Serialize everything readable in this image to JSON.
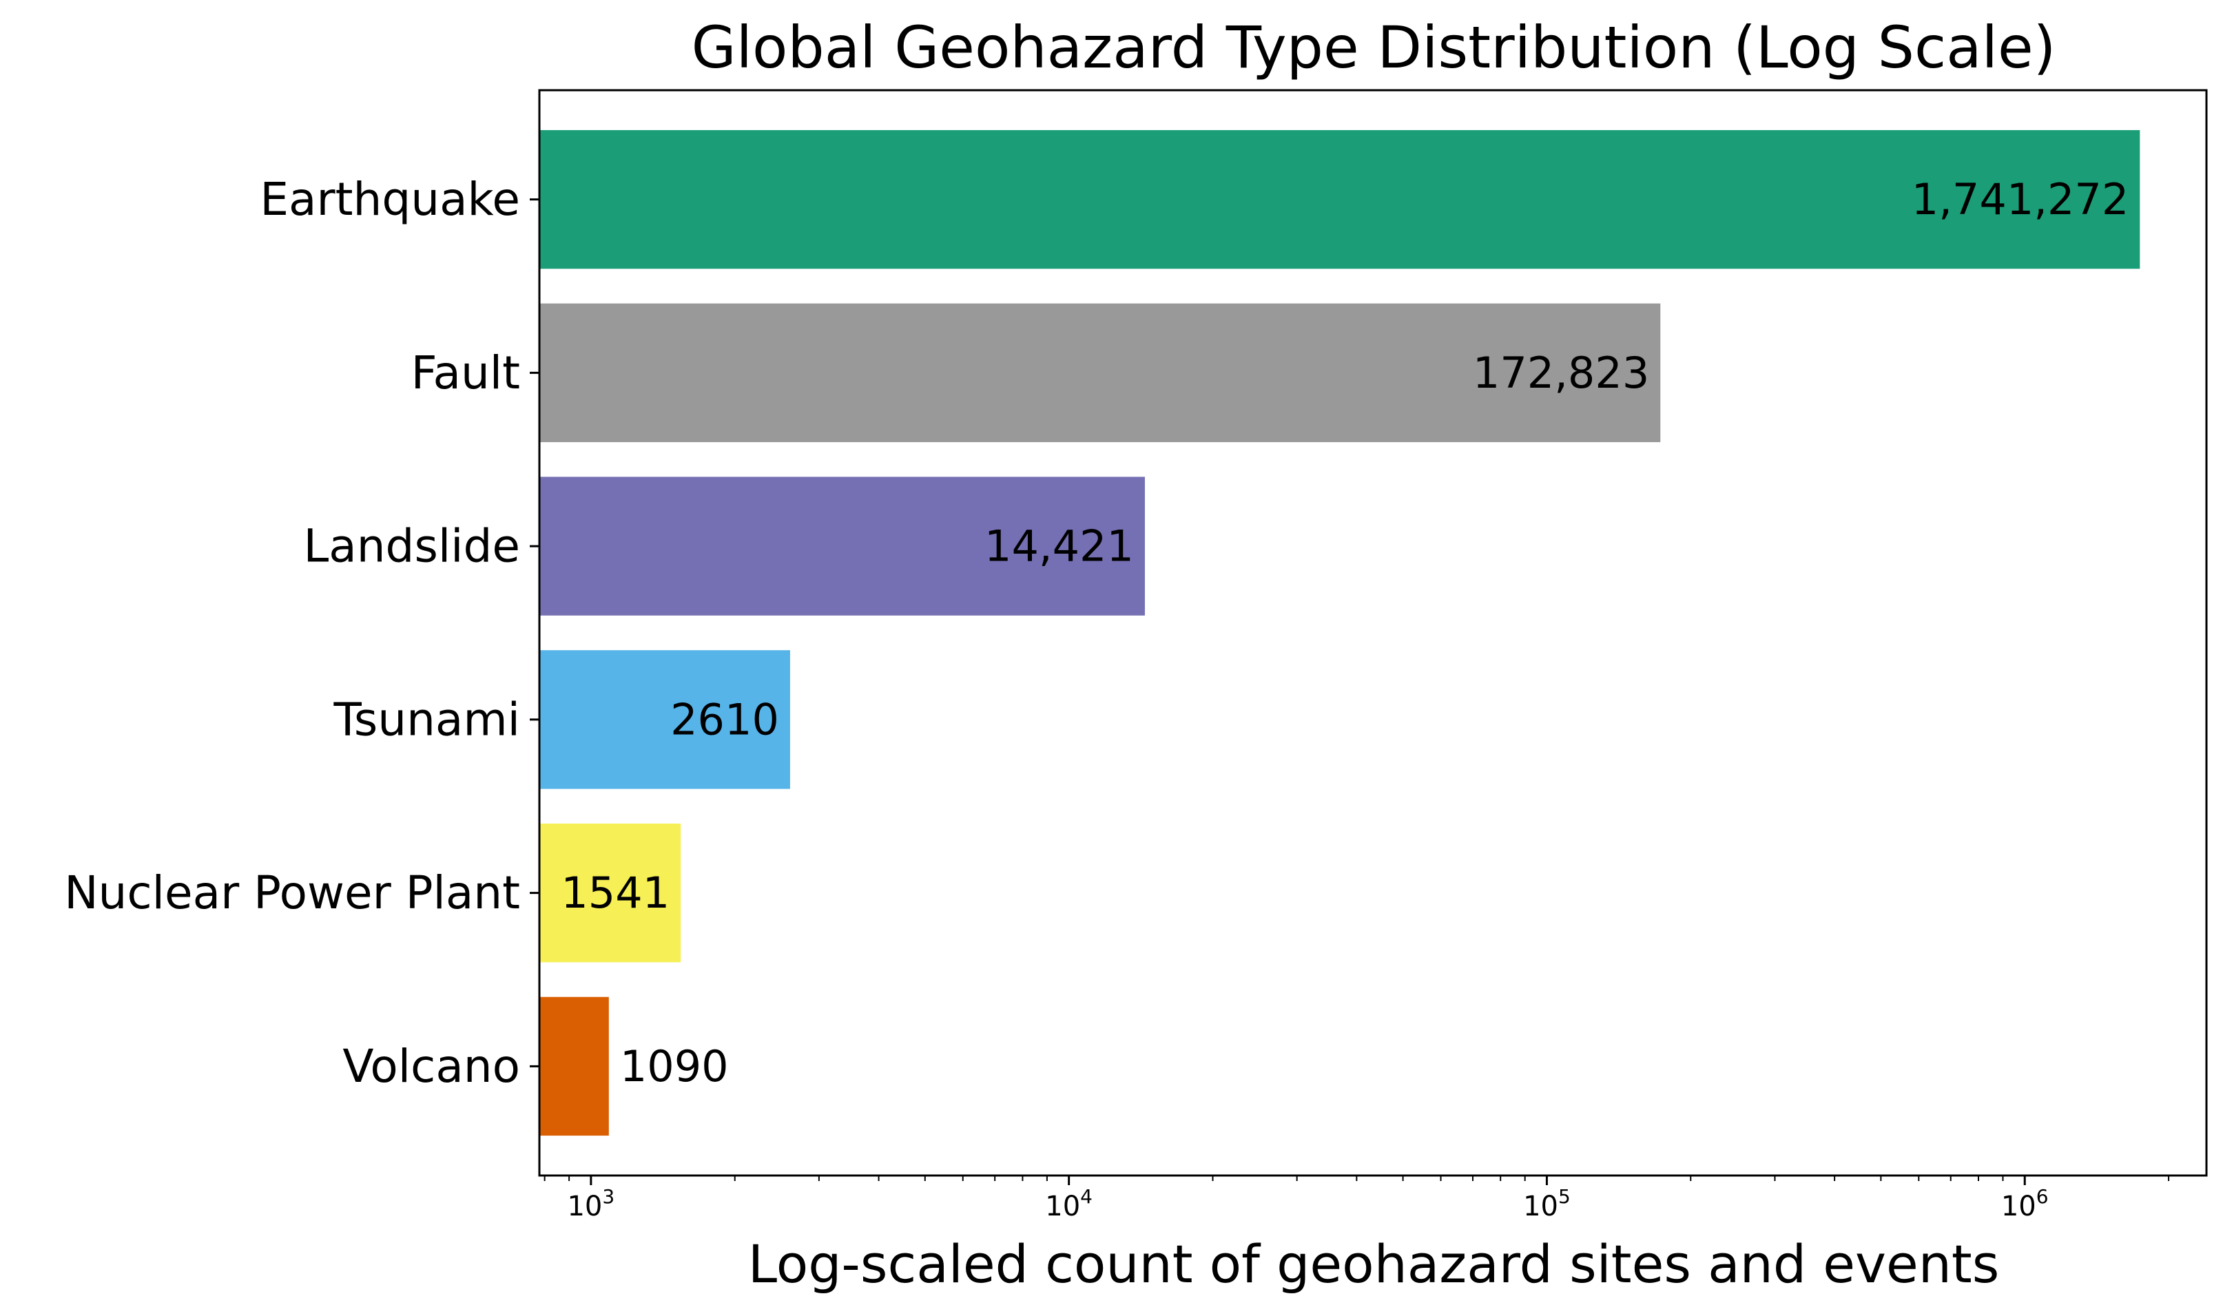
{
  "chart_data": {
    "type": "bar",
    "orientation": "horizontal",
    "title": "Global Geohazard Type Distribution (Log Scale)",
    "xlabel": "Log-scaled count of geohazard sites and events",
    "ylabel": "",
    "x_scale": "log",
    "xlim": [
      780,
      2400000
    ],
    "grid": false,
    "categories": [
      "Earthquake",
      "Fault",
      "Landslide",
      "Tsunami",
      "Nuclear Power Plant",
      "Volcano"
    ],
    "values": [
      1741272,
      172823,
      14421,
      2610,
      1541,
      1090
    ],
    "value_labels": [
      "1,741,272",
      "172,823",
      "14,421",
      "2610",
      "1541",
      "1090"
    ],
    "colors": [
      "#1b9e77",
      "#999999",
      "#7570b3",
      "#56b4e9",
      "#f6f056",
      "#d95f02"
    ],
    "major_ticks": [
      {
        "value": 1000,
        "base": "10",
        "exp": "3"
      },
      {
        "value": 10000,
        "base": "10",
        "exp": "4"
      },
      {
        "value": 100000,
        "base": "10",
        "exp": "5"
      },
      {
        "value": 1000000,
        "base": "10",
        "exp": "6"
      }
    ]
  }
}
